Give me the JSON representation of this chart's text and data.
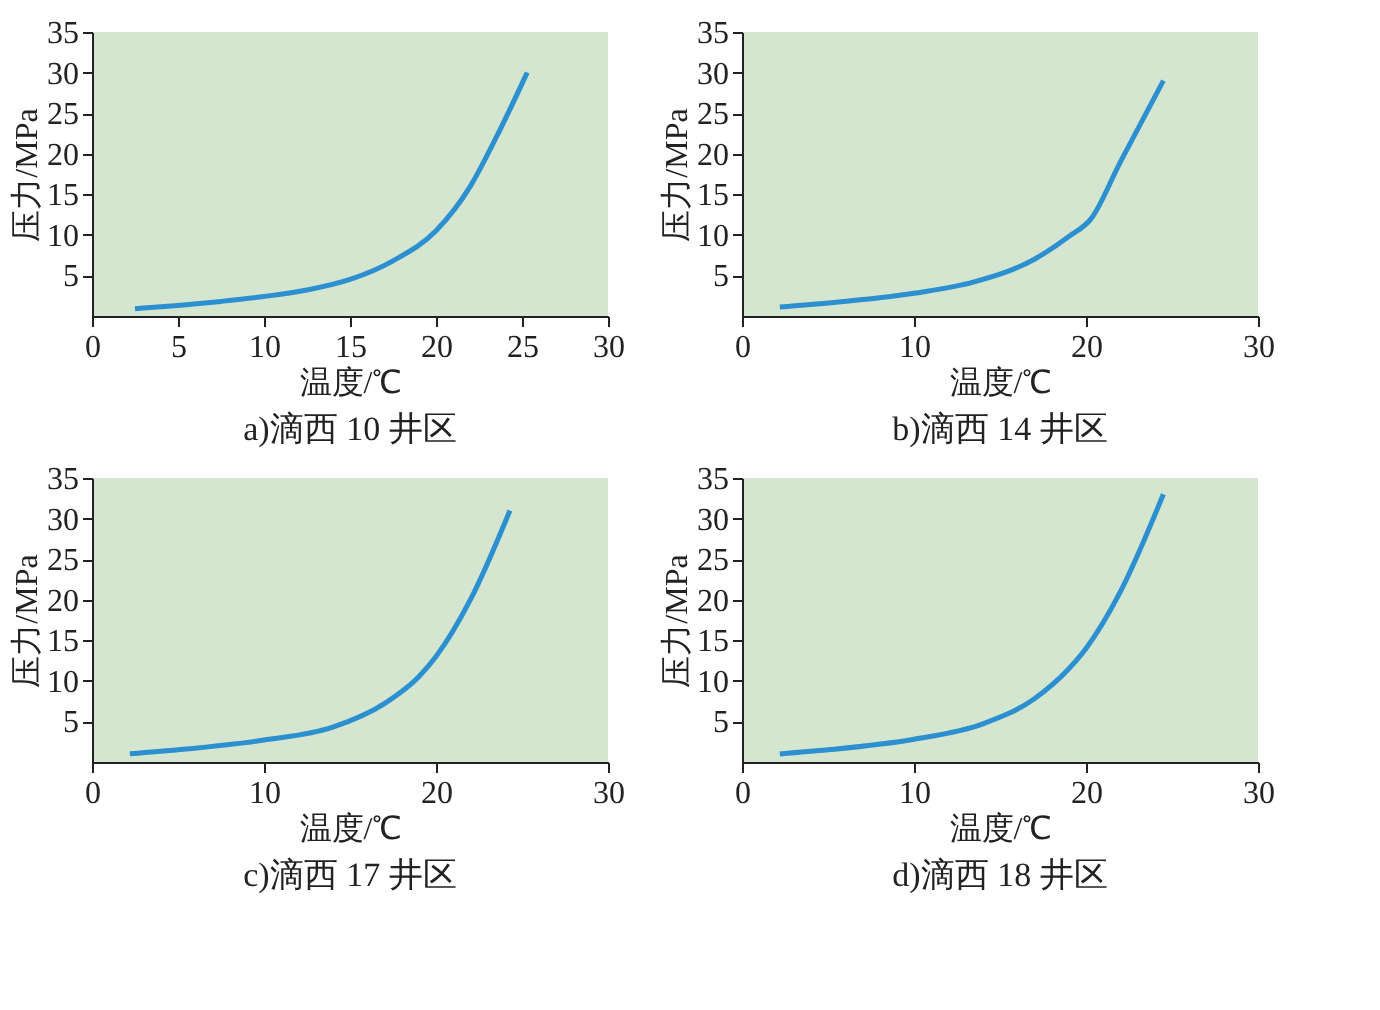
{
  "chart_data": [
    {
      "type": "line",
      "title": "a)滴西 10 井区",
      "xlabel": "温度/℃",
      "ylabel": "压力/MPa",
      "xlim": [
        0,
        30
      ],
      "ylim": [
        0,
        35
      ],
      "xticks": [
        0,
        5,
        10,
        15,
        20,
        25,
        30
      ],
      "yticks": [
        5,
        10,
        15,
        20,
        25,
        30,
        35
      ],
      "grid": false,
      "series": [
        {
          "color": "#2b8fd0",
          "x": [
            2.5,
            5,
            7.5,
            10,
            12.5,
            15,
            17.5,
            20,
            22,
            23.5,
            25.3
          ],
          "values": [
            0.9,
            1.3,
            1.8,
            2.4,
            3.2,
            4.5,
            6.8,
            10.5,
            16,
            22,
            30
          ]
        }
      ]
    },
    {
      "type": "line",
      "title": "b)滴西 14 井区",
      "xlabel": "温度/℃",
      "ylabel": "压力/MPa",
      "xlim": [
        0,
        30
      ],
      "ylim": [
        0,
        35
      ],
      "xticks": [
        0,
        10,
        20,
        30
      ],
      "yticks": [
        5,
        10,
        15,
        20,
        25,
        30,
        35
      ],
      "grid": false,
      "series": [
        {
          "color": "#2b8fd0",
          "x": [
            2.2,
            5,
            10,
            13.5,
            17,
            19,
            20.3,
            22,
            24.5
          ],
          "values": [
            1.1,
            1.6,
            2.8,
            4.2,
            7,
            9.8,
            12,
            19,
            29
          ]
        }
      ]
    },
    {
      "type": "line",
      "title": "c)滴西 17 井区",
      "xlabel": "温度/℃",
      "ylabel": "压力/MPa",
      "xlim": [
        0,
        30
      ],
      "ylim": [
        0,
        35
      ],
      "xticks": [
        0,
        10,
        20,
        30
      ],
      "yticks": [
        5,
        10,
        15,
        20,
        25,
        30,
        35
      ],
      "grid": false,
      "series": [
        {
          "color": "#2b8fd0",
          "x": [
            2.2,
            5,
            10,
            14,
            17,
            19,
            20,
            22,
            24.3
          ],
          "values": [
            1.0,
            1.5,
            2.7,
            4.3,
            7.2,
            10.5,
            13,
            20,
            31
          ]
        }
      ]
    },
    {
      "type": "line",
      "title": "d)滴西 18 井区",
      "xlabel": "温度/℃",
      "ylabel": "压力/MPa",
      "xlim": [
        0,
        30
      ],
      "ylim": [
        0,
        35
      ],
      "xticks": [
        0,
        10,
        20,
        30
      ],
      "yticks": [
        5,
        10,
        15,
        20,
        25,
        30,
        35
      ],
      "grid": false,
      "series": [
        {
          "color": "#2b8fd0",
          "x": [
            2.2,
            5,
            10,
            14,
            17,
            19,
            20,
            22,
            24.5
          ],
          "values": [
            1.0,
            1.5,
            2.8,
            4.7,
            7.8,
            11.5,
            14,
            21,
            33
          ]
        }
      ]
    }
  ]
}
